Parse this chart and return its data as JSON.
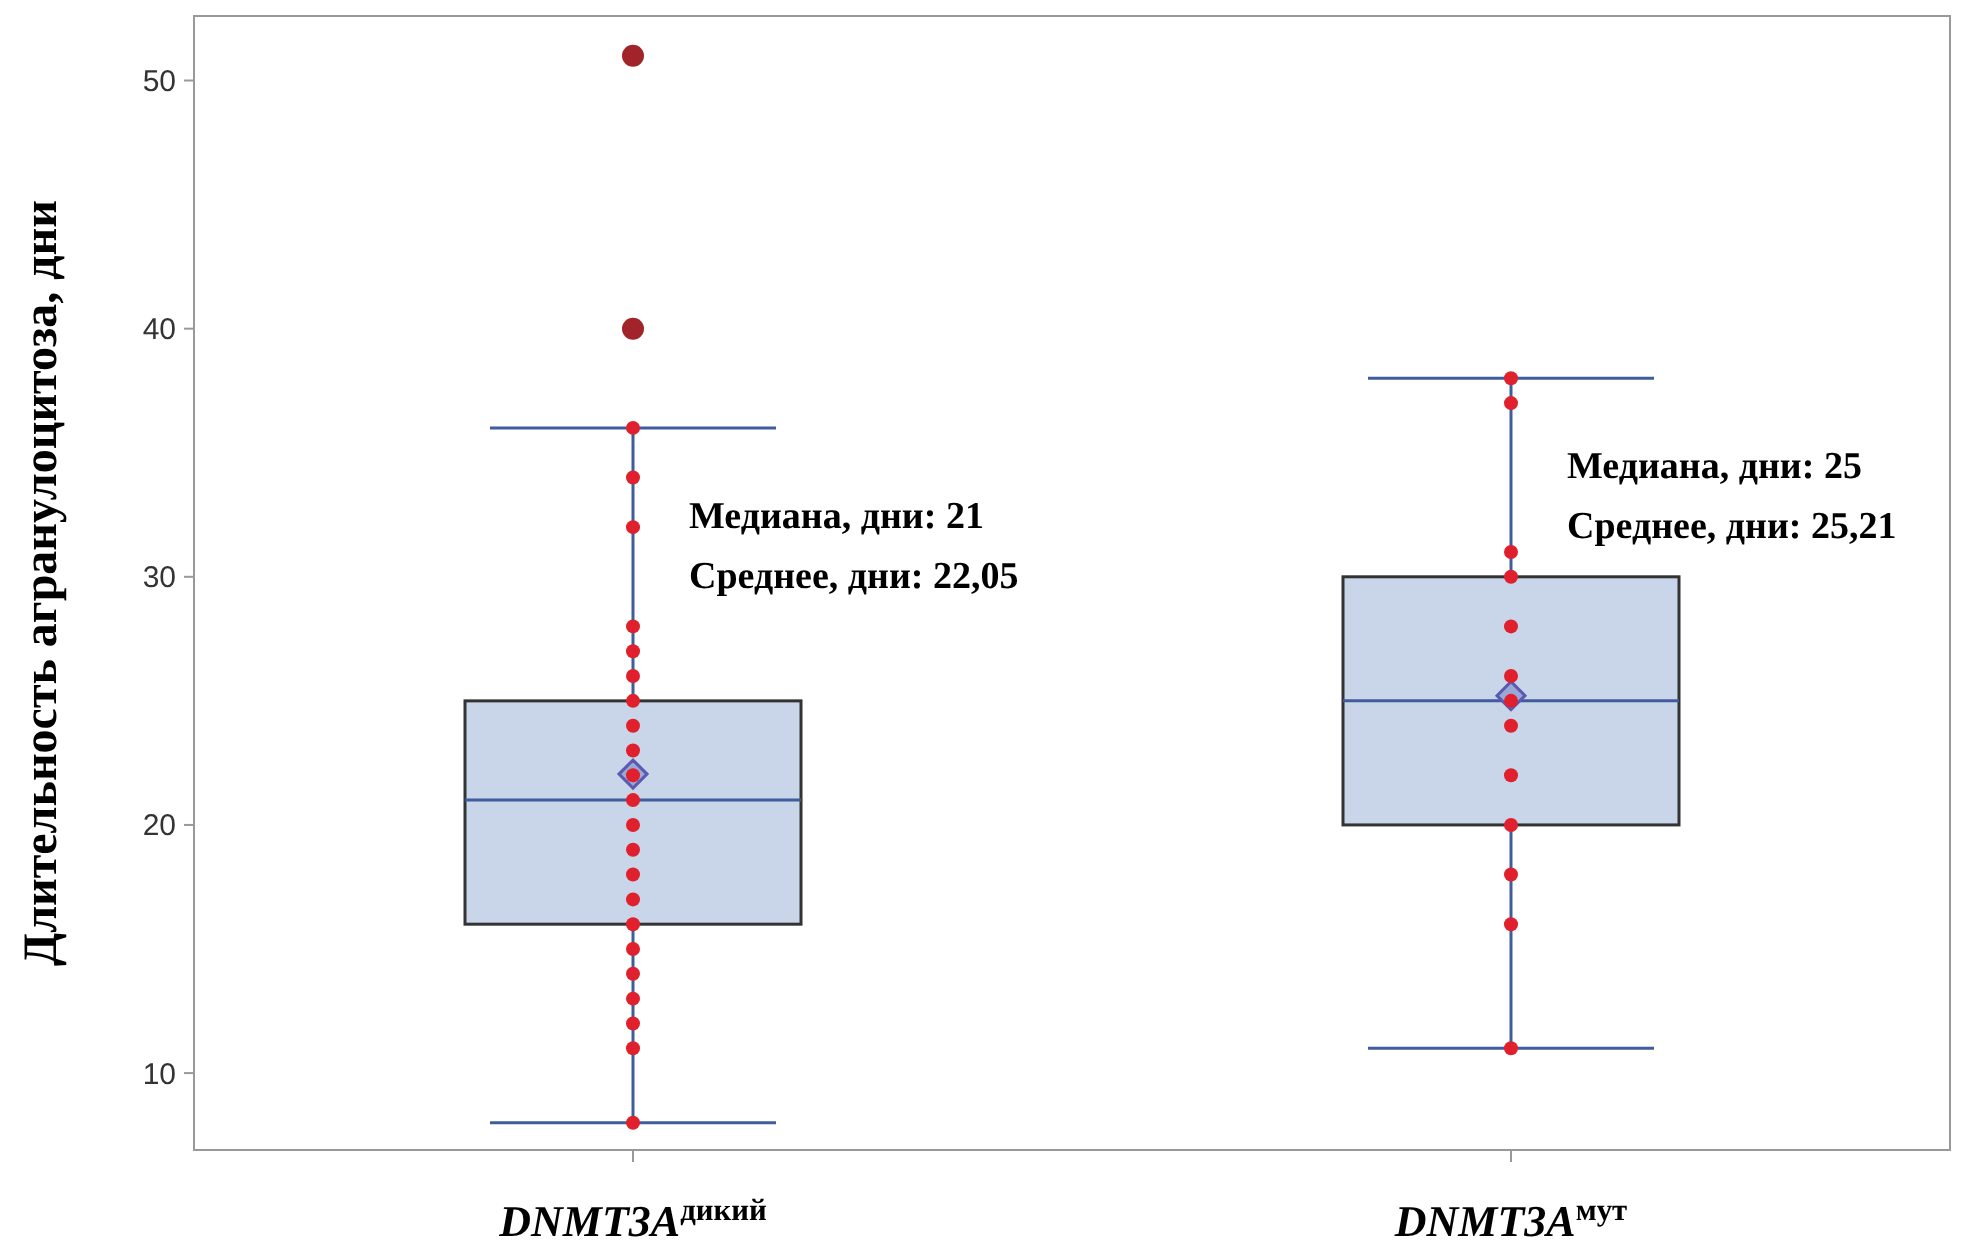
{
  "chart_data": {
    "type": "box",
    "ylabel": "Длительность агранулоцитоза, дни",
    "categories": [
      "DNMT3A$^{дикий}$",
      "DNMT3A$^{мут}$"
    ],
    "color": "#c9d5e8",
    "boxes": [
      {
        "low": 8,
        "q1": 16,
        "median": 21,
        "q3": 25,
        "high": 36,
        "mean": 22.05,
        "outliers": [
          40,
          51
        ]
      },
      {
        "low": 11,
        "q1": 20,
        "median": 25,
        "q3": 30,
        "high": 38,
        "mean": 25.21
      }
    ],
    "series": [
      {
        "type": "scatter",
        "color": "#e0202c",
        "x": [
          "DNMT3A$^{дикий}$",
          "DNMT3A$^{дикий}$",
          "DNMT3A$^{дикий}$",
          "DNMT3A$^{дикий}$",
          "DNMT3A$^{дикий}$",
          "DNMT3A$^{дикий}$",
          "DNMT3A$^{дикий}$",
          "DNMT3A$^{дикий}$",
          "DNMT3A$^{дикий}$",
          "DNMT3A$^{дикий}$",
          "DNMT3A$^{дикий}$",
          "DNMT3A$^{дикий}$",
          "DNMT3A$^{дикий}$",
          "DNMT3A$^{дикий}$",
          "DNMT3A$^{дикий}$",
          "DNMT3A$^{дикий}$",
          "DNMT3A$^{дикий}$",
          "DNMT3A$^{дикий}$",
          "DNMT3A$^{дикий}$",
          "DNMT3A$^{дикий}$",
          "DNMT3A$^{дикий}$",
          "DNMT3A$^{дикий}$",
          "DNMT3A$^{мут}$",
          "DNMT3A$^{мут}$",
          "DNMT3A$^{мут}$",
          "DNMT3A$^{мут}$",
          "DNMT3A$^{мут}$",
          "DNMT3A$^{мут}$",
          "DNMT3A$^{мут}$",
          "DNMT3A$^{мут}$",
          "DNMT3A$^{мут}$",
          "DNMT3A$^{мут}$",
          "DNMT3A$^{мут}$",
          "DNMT3A$^{мут}$",
          "DNMT3A$^{мут}$"
        ],
        "values": [
          8,
          11,
          12,
          13,
          14,
          15,
          16,
          17,
          18,
          19,
          20,
          21,
          22,
          23,
          24,
          25,
          26,
          27,
          28,
          32,
          34,
          36,
          38,
          37,
          31,
          30,
          28,
          26,
          25,
          24,
          22,
          20,
          18,
          16,
          11
        ]
      }
    ],
    "marker": "circle",
    "ylim": [
      6.9,
      52.6
    ],
    "yticks": [
      10,
      20,
      30,
      40,
      50
    ],
    "grid": false,
    "annotations": [
      "Медиана, дни: 21",
      "Среднее, дни: 22,05",
      "Медиана, дни: 25",
      "Среднее, дни: 25,21"
    ]
  }
}
